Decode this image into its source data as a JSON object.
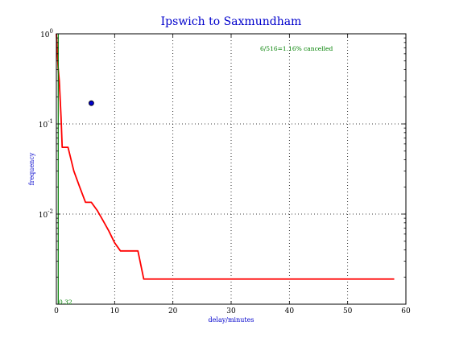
{
  "chart_data": {
    "type": "line",
    "title": "Ipswich to Saxmundham",
    "xlabel": "delay/minutes",
    "ylabel": "frequency",
    "xlim": [
      0,
      60
    ],
    "ylim": [
      0.001,
      1
    ],
    "yscale": "log",
    "grid": true,
    "x_ticks": [
      0,
      10,
      20,
      30,
      40,
      50,
      60
    ],
    "y_ticks": [
      {
        "value": 0.01,
        "base": "10",
        "exp": "-2"
      },
      {
        "value": 0.1,
        "base": "10",
        "exp": "-1"
      },
      {
        "value": 1,
        "base": "10",
        "exp": "0"
      }
    ],
    "annotations": {
      "cancelled": "6/516=1.16% cancelled",
      "vline_label": "0.32"
    },
    "series": [
      {
        "color": "#ff0000",
        "kind": "step",
        "x": [
          0,
          0.3,
          0.5,
          0.8,
          1,
          2,
          3,
          4,
          5,
          6,
          7,
          8,
          9,
          10,
          11,
          12,
          13,
          14,
          15,
          58
        ],
        "y": [
          1.0,
          0.42,
          0.3,
          0.12,
          0.055,
          0.055,
          0.03,
          0.02,
          0.0135,
          0.0135,
          0.011,
          0.0085,
          0.0065,
          0.0048,
          0.0039,
          0.0039,
          0.0039,
          0.0039,
          0.0019,
          0.0019
        ]
      },
      {
        "color": "#008000",
        "kind": "vline",
        "x": [
          0.32,
          0.32
        ],
        "y": [
          0.001,
          1
        ]
      },
      {
        "color": "#0000cc",
        "kind": "point",
        "x": [
          6
        ],
        "y": [
          0.17
        ]
      }
    ]
  }
}
